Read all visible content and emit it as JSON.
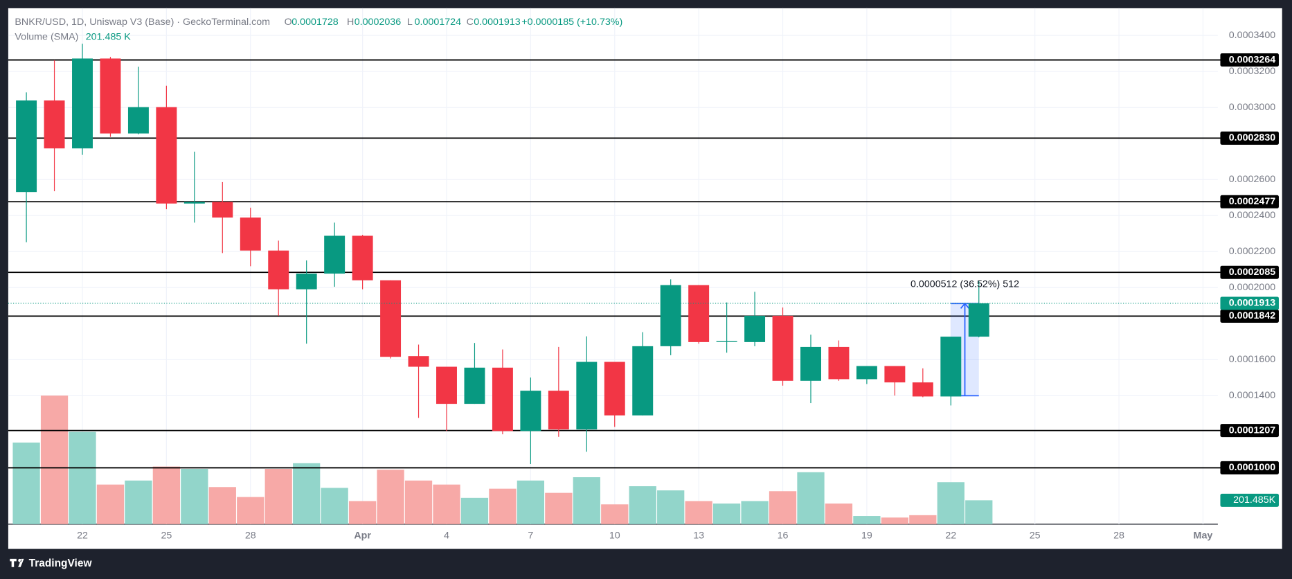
{
  "chart_data": {
    "type": "candlestick",
    "title": "BNKR/USD, 1D, Uniswap V3 (Base) · GeckoTerminal.com",
    "legend_keys": [
      "O",
      "H",
      "L",
      "C"
    ],
    "change_label": "+0.0000185 (+10.73%)",
    "x": [
      0,
      1,
      2,
      3,
      4,
      5,
      6,
      7,
      8,
      9,
      10,
      11,
      12,
      13,
      14,
      15,
      16,
      17,
      18,
      19,
      20,
      21,
      22,
      23,
      24,
      25,
      26,
      27,
      28,
      29,
      30,
      31,
      32,
      33,
      34
    ],
    "xlim": [
      -0.647,
      42.53
    ],
    "xticks": [
      {
        "value": 2,
        "label": "22"
      },
      {
        "value": 5,
        "label": "25"
      },
      {
        "value": 8,
        "label": "28"
      },
      {
        "value": 12,
        "label": "Apr"
      },
      {
        "value": 15,
        "label": "4"
      },
      {
        "value": 18,
        "label": "7"
      },
      {
        "value": 21,
        "label": "10"
      },
      {
        "value": 24,
        "label": "13"
      },
      {
        "value": 27,
        "label": "16"
      },
      {
        "value": 30,
        "label": "19"
      },
      {
        "value": 33,
        "label": "22"
      },
      {
        "value": 36,
        "label": "25"
      },
      {
        "value": 39,
        "label": "28"
      },
      {
        "value": 42,
        "label": "May"
      }
    ],
    "open": [
      0.0002531,
      0.0003039,
      0.0002773,
      0.0003272,
      0.0002856,
      0.0003002,
      0.0002467,
      0.0002476,
      0.0002389,
      0.0002206,
      0.0001991,
      0.0002078,
      0.0002288,
      0.0002041,
      0.000162,
      0.0001561,
      0.0001355,
      0.0001556,
      0.0001204,
      0.0001428,
      0.0001213,
      0.0001588,
      0.0001291,
      0.0001675,
      0.0002014,
      0.0001698,
      0.0001698,
      0.0001844,
      0.0001483,
      0.0001671,
      0.0001492,
      0.0001565,
      0.0001474,
      0.0001396,
      0.0001728
    ],
    "high": [
      0.0003084,
      0.0003263,
      0.0003354,
      0.0003281,
      0.0003226,
      0.0003121,
      0.0002755,
      0.0002586,
      0.0002444,
      0.0002261,
      0.0002151,
      0.0002361,
      0.0002293,
      0.0002041,
      0.0001684,
      0.0001561,
      0.0001693,
      0.0001657,
      0.0001501,
      0.0001671,
      0.000173,
      0.0001588,
      0.0001753,
      0.0002046,
      0.0002014,
      0.0001918,
      0.0001977,
      0.000189,
      0.0001739,
      0.0001707,
      0.0001565,
      0.0001565,
      0.0001552,
      0.0001721,
      0.0002036
    ],
    "low": [
      0.0002252,
      0.0002535,
      0.0002737,
      0.0002837,
      0.0002851,
      0.0002435,
      0.0002361,
      0.0002192,
      0.0002119,
      0.0001844,
      0.0001689,
      0.0002005,
      0.0001991,
      0.0001607,
      0.0001277,
      0.0001204,
      0.0001355,
      0.0001186,
      0.0001021,
      0.0001172,
      0.0001089,
      0.0001227,
      0.0001291,
      0.0001625,
      0.0001689,
      0.0001639,
      0.0001675,
      0.0001456,
      0.0001359,
      0.0001483,
      0.0001465,
      0.0001401,
      0.0001392,
      0.0001346,
      0.0001724
    ],
    "close": [
      0.0003039,
      0.0002773,
      0.0003272,
      0.0002856,
      0.0003002,
      0.0002467,
      0.0002476,
      0.0002389,
      0.0002206,
      0.0001991,
      0.0002078,
      0.0002288,
      0.0002041,
      0.0001616,
      0.0001561,
      0.0001355,
      0.0001556,
      0.0001204,
      0.0001428,
      0.0001213,
      0.0001588,
      0.0001291,
      0.0001675,
      0.0002014,
      0.0001698,
      0.0001703,
      0.0001844,
      0.0001483,
      0.0001671,
      0.0001492,
      0.0001565,
      0.0001474,
      0.0001396,
      0.0001728,
      0.0001913
    ],
    "up_color": "#089981",
    "down_color": "#f23645",
    "ylim": [
      6.87e-05,
      0.0003551
    ],
    "yticks": [
      {
        "value": 0.00034,
        "label": "0.0003400"
      },
      {
        "value": 0.00032,
        "label": "0.0003200"
      },
      {
        "value": 0.0003,
        "label": "0.0003000"
      },
      {
        "value": 0.00026,
        "label": "0.0002600"
      },
      {
        "value": 0.00024,
        "label": "0.0002400"
      },
      {
        "value": 0.00022,
        "label": "0.0002200"
      },
      {
        "value": 0.0002,
        "label": "0.0002000"
      },
      {
        "value": 0.00016,
        "label": "0.0001600"
      },
      {
        "value": 0.00014,
        "label": "0.0001400"
      }
    ],
    "grid": true,
    "levels": [
      0.0003264,
      {
        "value": 0.000283,
        "label": "0.0002830"
      },
      0.0002477,
      0.0002085,
      0.0001842,
      0.0001207,
      {
        "value": 0.0001,
        "label": "0.0001000"
      }
    ],
    "volume": {
      "name": "Volume (SMA)",
      "values": [
        688000,
        1084000,
        778000,
        334000,
        368000,
        486000,
        466000,
        313000,
        229000,
        466000,
        514000,
        306000,
        195000,
        459000,
        368000,
        334000,
        222000,
        299000,
        368000,
        264000,
        396000,
        167000,
        320000,
        285000,
        195000,
        174000,
        195000,
        278000,
        438000,
        174000,
        69000,
        56000,
        76000,
        354000,
        201485
      ],
      "up_color": "#92d5ca",
      "down_color": "#f7a9a7",
      "ylim": [
        0,
        4349000
      ],
      "last_label": "201.485 K",
      "tag_label": "201.485K"
    },
    "measure": {
      "label": "0.0000512 (36.52%) 512",
      "ylim": [
        0.00014,
        0.0001912
      ],
      "xlim": [
        33,
        34
      ]
    },
    "footer": "TradingView"
  }
}
